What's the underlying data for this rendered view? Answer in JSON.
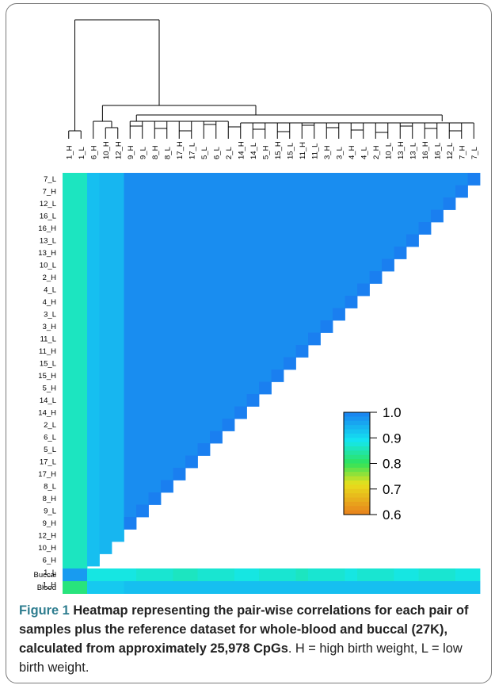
{
  "chart_data": {
    "type": "heatmap",
    "samples": [
      "1_H",
      "1_L",
      "6_H",
      "10_H",
      "12_H",
      "9_H",
      "9_L",
      "8_H",
      "8_L",
      "17_H",
      "17_L",
      "5_L",
      "6_L",
      "2_L",
      "14_H",
      "14_L",
      "5_H",
      "15_H",
      "15_L",
      "11_H",
      "11_L",
      "3_H",
      "3_L",
      "4_H",
      "4_L",
      "2_H",
      "10_L",
      "13_H",
      "13_L",
      "16_H",
      "16_L",
      "12_L",
      "7_H",
      "7_L"
    ],
    "row_labels_top_to_bottom": [
      "7_L",
      "7_H",
      "12_L",
      "16_L",
      "16_H",
      "13_L",
      "13_H",
      "10_L",
      "2_H",
      "4_L",
      "4_H",
      "3_L",
      "3_H",
      "11_L",
      "11_H",
      "15_L",
      "15_H",
      "5_H",
      "14_L",
      "14_H",
      "2_L",
      "6_L",
      "5_L",
      "17_L",
      "17_H",
      "8_L",
      "8_H",
      "9_L",
      "9_H",
      "12_H",
      "10_H",
      "6_H",
      "1_L",
      "1_H"
    ],
    "reference_rows": [
      "Buccal",
      "Blood"
    ],
    "value_scale": {
      "min": 0.6,
      "max": 1.0,
      "ticks": [
        "1.0",
        "0.9",
        "0.8",
        "0.7",
        "0.6"
      ]
    },
    "colors": {
      "high": "#1a7ff0",
      "mid": "#2ee35a",
      "low": "#e8801c"
    },
    "column_mean_correlation_with_others": [
      0.86,
      0.86,
      0.93,
      0.94,
      0.94,
      0.985,
      0.985,
      0.985,
      0.985,
      0.985,
      0.985,
      0.985,
      0.985,
      0.985,
      0.985,
      0.985,
      0.985,
      0.985,
      0.985,
      0.985,
      0.985,
      0.985,
      0.985,
      0.985,
      0.985,
      0.985,
      0.985,
      0.985,
      0.985,
      0.985,
      0.985,
      0.985,
      0.985,
      0.985
    ],
    "buccal_correlation": [
      0.97,
      0.97,
      0.88,
      0.88,
      0.88,
      0.88,
      0.87,
      0.87,
      0.87,
      0.86,
      0.86,
      0.87,
      0.87,
      0.87,
      0.88,
      0.88,
      0.87,
      0.87,
      0.87,
      0.86,
      0.87,
      0.87,
      0.87,
      0.88,
      0.87,
      0.87,
      0.87,
      0.88,
      0.88,
      0.87,
      0.87,
      0.87,
      0.88,
      0.88
    ],
    "blood_correlation": [
      0.82,
      0.82,
      0.92,
      0.92,
      0.92,
      0.93,
      0.93,
      0.93,
      0.93,
      0.93,
      0.93,
      0.93,
      0.93,
      0.93,
      0.93,
      0.93,
      0.93,
      0.93,
      0.93,
      0.93,
      0.93,
      0.93,
      0.93,
      0.93,
      0.93,
      0.93,
      0.93,
      0.93,
      0.93,
      0.93,
      0.93,
      0.93,
      0.93,
      0.93
    ]
  },
  "caption": {
    "lead": "Figure 1",
    "bold_text": " Heatmap representing the pair-wise correlations for each pair of samples plus the reference dataset for whole-blood and buccal (27K), calculated from approximately 25,978",
    "cpgs": "CpGs",
    "rest": ". H = high birth weight, L = low birth weight."
  }
}
